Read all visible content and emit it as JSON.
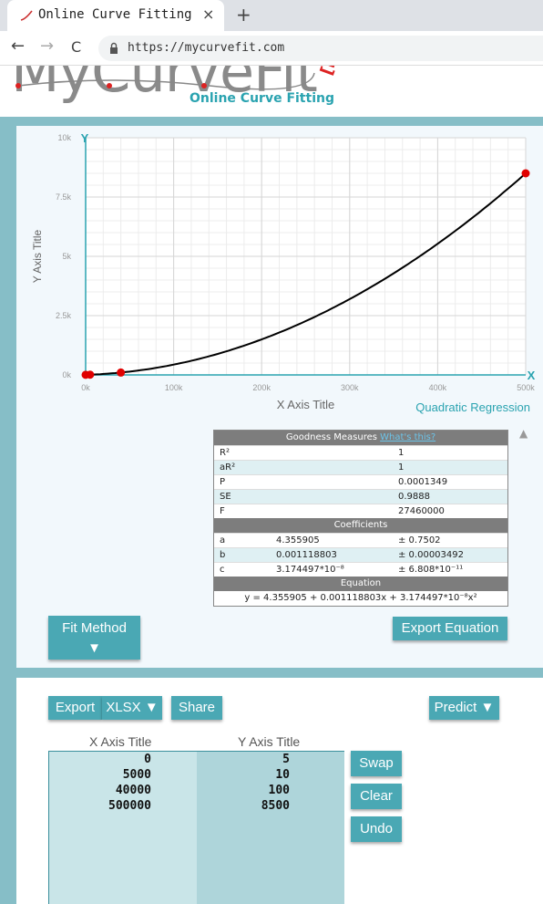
{
  "browser": {
    "tab_title": "Online Curve Fitting",
    "tab_close": "×",
    "new_tab": "+",
    "back": "←",
    "forward": "→",
    "reload": "C",
    "url": "https://mycurvefit.com"
  },
  "site": {
    "logo_text": "MyCurveFit",
    "beta": "[BETA",
    "subtitle": "Online Curve Fitting"
  },
  "chart_data": {
    "type": "scatter",
    "xlabel": "X Axis Title",
    "ylabel": "Y Axis Title",
    "fit_label": "Quadratic Regression",
    "xlim": [
      0,
      500000
    ],
    "ylim": [
      0,
      10000
    ],
    "x_ticks": [
      "0k",
      "100k",
      "200k",
      "300k",
      "400k",
      "500k"
    ],
    "y_ticks": [
      "0k",
      "2.5k",
      "5k",
      "7.5k",
      "10k"
    ],
    "grid": true,
    "points": [
      {
        "x": 0,
        "y": 5
      },
      {
        "x": 5000,
        "y": 10
      },
      {
        "x": 40000,
        "y": 100
      },
      {
        "x": 500000,
        "y": 8500
      }
    ],
    "fit": {
      "a": 4.355905,
      "b": 0.001118803,
      "c": 3.174497e-08
    },
    "axis_markers": {
      "y": "Y",
      "x": "X"
    }
  },
  "results": {
    "goodness_header": "Goodness Measures",
    "whats_this": "What's this?",
    "goodness": [
      {
        "name": "R²",
        "value": "1"
      },
      {
        "name": "aR²",
        "value": "1"
      },
      {
        "name": "P",
        "value": "0.0001349"
      },
      {
        "name": "SE",
        "value": "0.9888"
      },
      {
        "name": "F",
        "value": "27460000"
      }
    ],
    "coefficients_header": "Coefficients",
    "coefficients": [
      {
        "name": "a",
        "value": "4.355905",
        "error": "± 0.7502"
      },
      {
        "name": "b",
        "value": "0.001118803",
        "error": "± 0.00003492"
      },
      {
        "name": "c",
        "value": "3.174497*10⁻⁸",
        "error": "± 6.808*10⁻¹¹"
      }
    ],
    "equation_header": "Equation",
    "equation": "y = 4.355905 + 0.001118803x + 3.174497*10⁻⁸x²"
  },
  "buttons": {
    "fit_method": "Fit Method",
    "fit_method_arrow": "▼",
    "export_equation": "Export Equation",
    "export": "Export",
    "xlsx": "XLSX ▼",
    "share": "Share",
    "predict": "Predict ▼",
    "swap": "Swap",
    "clear": "Clear",
    "undo": "Undo",
    "scroll_up": "▲"
  },
  "data_entry": {
    "x_header": "X Axis Title",
    "y_header": "Y Axis Title",
    "x_values": [
      "0",
      "5000",
      "40000",
      "500000"
    ],
    "y_values": [
      "5",
      "10",
      "100",
      "8500"
    ]
  },
  "colors": {
    "accent": "#4aa8b4",
    "frame": "#86bec7",
    "point": "#e00000",
    "axis": "#2aa3b0"
  }
}
